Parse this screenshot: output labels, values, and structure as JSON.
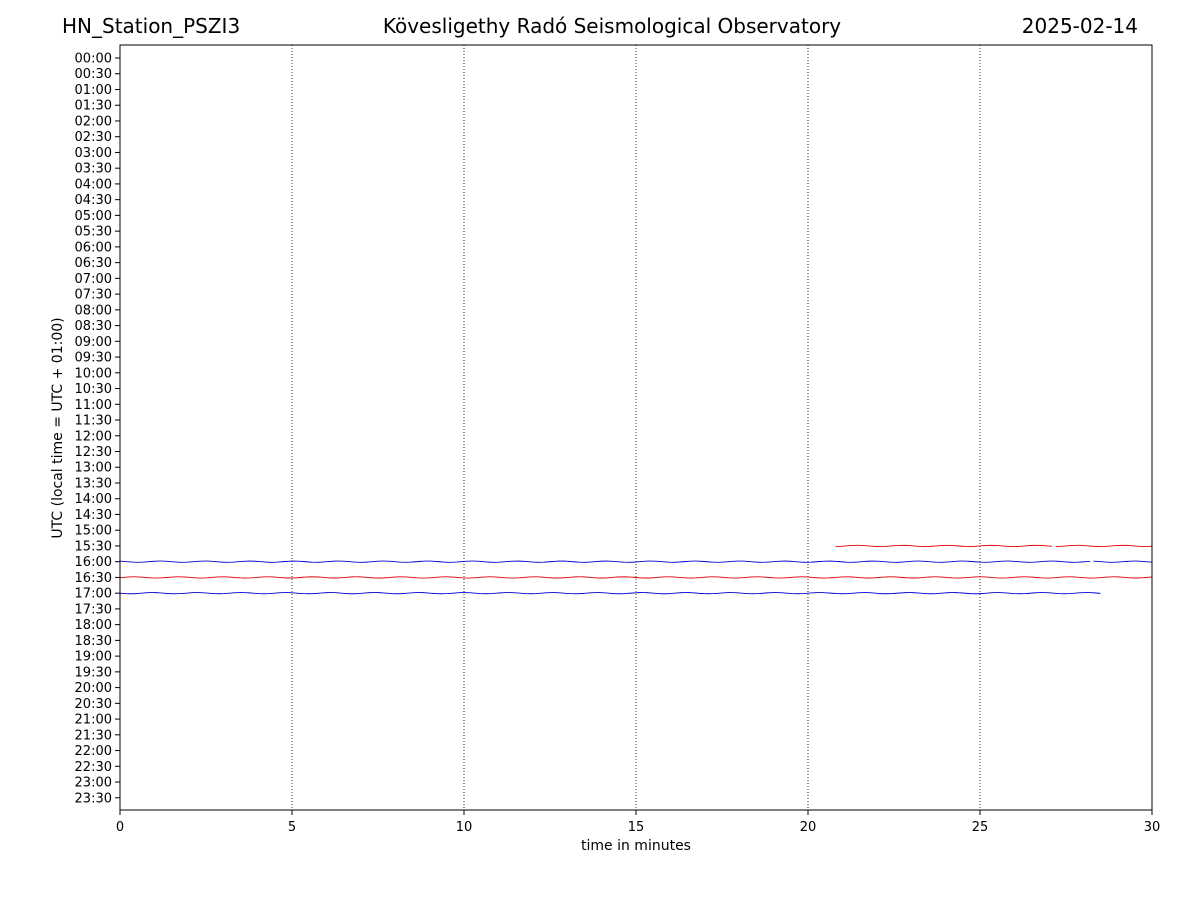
{
  "header": {
    "station": "HN_Station_PSZI3",
    "title": "Kövesligethy Radó Seismological Observatory",
    "date": "2025-02-14"
  },
  "chart_data": {
    "type": "line",
    "xlabel": "time in minutes",
    "ylabel": "UTC (local time = UTC + 01:00)",
    "xlim": [
      0,
      30
    ],
    "x_ticks": [
      0,
      5,
      10,
      15,
      20,
      25,
      30
    ],
    "x_tick_labels": [
      "0",
      "5",
      "10",
      "15",
      "20",
      "25",
      "30"
    ],
    "y_tick_labels": [
      "00:00",
      "00:30",
      "01:00",
      "01:30",
      "02:00",
      "02:30",
      "03:00",
      "03:30",
      "04:00",
      "04:30",
      "05:00",
      "05:30",
      "06:00",
      "06:30",
      "07:00",
      "07:30",
      "08:00",
      "08:30",
      "09:00",
      "09:30",
      "10:00",
      "10:30",
      "11:00",
      "11:30",
      "12:00",
      "12:30",
      "13:00",
      "13:30",
      "14:00",
      "14:30",
      "15:00",
      "15:30",
      "16:00",
      "16:30",
      "17:00",
      "17:30",
      "18:00",
      "18:30",
      "19:00",
      "19:30",
      "20:00",
      "20:30",
      "21:00",
      "21:30",
      "22:00",
      "22:30",
      "23:00",
      "23:30"
    ],
    "grid": "vertical dotted lines at x ticks",
    "series": [
      {
        "row": "15:30",
        "color": "#e00000",
        "segments": [
          [
            20.8,
            27.1
          ],
          [
            27.2,
            30.0
          ]
        ]
      },
      {
        "row": "16:00",
        "color": "#0000d0",
        "segments": [
          [
            0.0,
            28.2
          ],
          [
            28.3,
            30.0
          ]
        ]
      },
      {
        "row": "16:30",
        "color": "#e00000",
        "segments": [
          [
            0.0,
            30.0
          ]
        ]
      },
      {
        "row": "17:00",
        "color": "#0000d0",
        "segments": [
          [
            0.0,
            28.5
          ]
        ]
      }
    ]
  }
}
